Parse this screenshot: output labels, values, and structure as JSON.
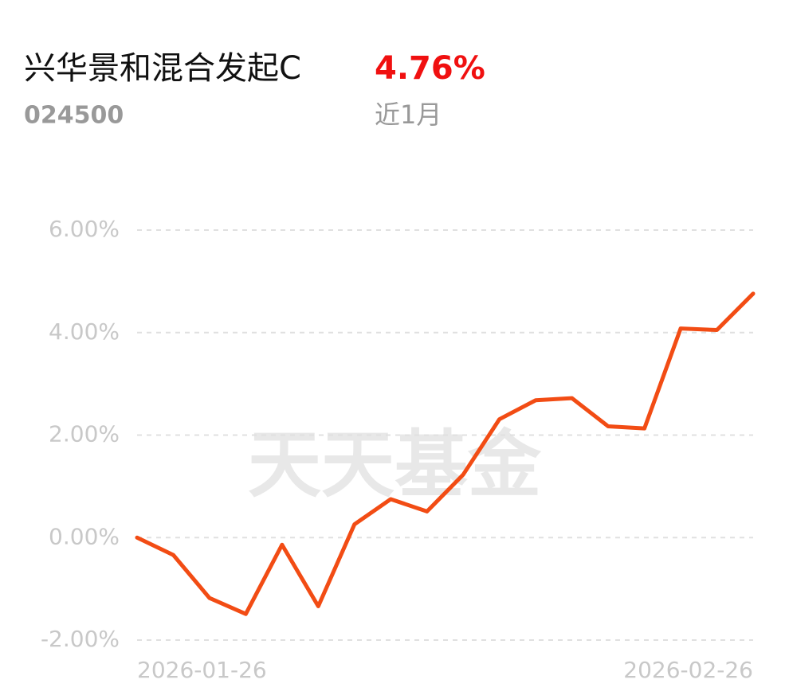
{
  "header": {
    "title": "兴华景和混合发起C",
    "code": "024500",
    "return": "4.76%",
    "period": "近1月",
    "watermark": "天天基金"
  },
  "chart_data": {
    "type": "line",
    "categories": [
      "2026-01-26",
      null,
      null,
      null,
      null,
      null,
      null,
      null,
      null,
      null,
      null,
      null,
      null,
      null,
      null,
      null,
      null,
      "2026-02-26"
    ],
    "series": [
      {
        "color": "#f24c14",
        "values": [
          0,
          -0.34,
          -1.18,
          -1.49,
          -0.14,
          -1.34,
          0.26,
          0.75,
          0.51,
          1.23,
          2.31,
          2.68,
          2.72,
          2.17,
          2.13,
          4.08,
          4.05,
          4.76
        ]
      }
    ],
    "ylim": [
      -2,
      6
    ],
    "yticks": [
      {
        "value": -2,
        "label": "-2.00%"
      },
      {
        "value": 0,
        "label": "0.00%"
      },
      {
        "value": 2,
        "label": "2.00%"
      },
      {
        "value": 4,
        "label": "4.00%"
      },
      {
        "value": 6,
        "label": "6.00%"
      }
    ],
    "grid": true
  }
}
